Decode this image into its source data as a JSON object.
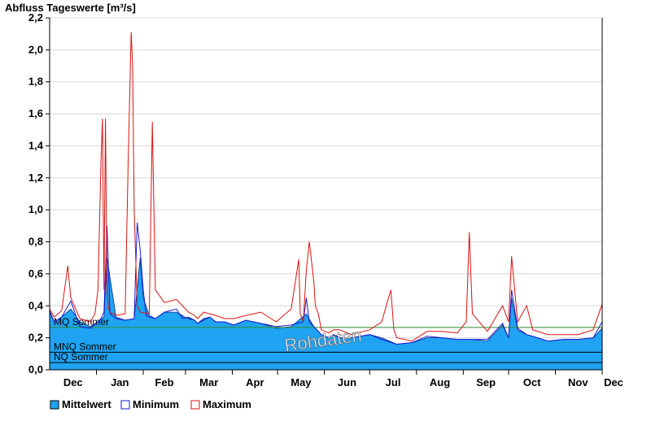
{
  "chart_data": {
    "type": "area",
    "title": "Abfluss Tageswerte [m³/s]",
    "ylim": [
      0,
      2.2
    ],
    "y_ticks": [
      "0,0",
      "0,2",
      "0,4",
      "0,6",
      "0,8",
      "1,0",
      "1,2",
      "1,4",
      "1,6",
      "1,8",
      "2,0",
      "2,2"
    ],
    "x_ticks": [
      "Dec",
      "Jan",
      "Feb",
      "Mar",
      "Apr",
      "May",
      "Jun",
      "Jul",
      "Aug",
      "Sep",
      "Oct",
      "Nov",
      "Dec"
    ],
    "grid": true,
    "watermark": "Rohdaten",
    "reference_lines": [
      {
        "label": "MQ Sommer",
        "value": 0.265,
        "color": "#2e8b2e"
      },
      {
        "label": "MNQ Sommer",
        "value": 0.11,
        "color": "#000000"
      },
      {
        "label": "NQ Sommer",
        "value": 0.045,
        "color": "#000000"
      }
    ],
    "series": [
      {
        "name": "Mittelwert",
        "style": "area",
        "color": "#1fa3f2",
        "x": [
          0,
          3,
          8,
          14,
          20,
          27,
          32,
          36,
          38,
          44,
          50,
          56,
          60,
          62,
          66,
          70,
          76,
          84,
          88,
          90,
          92,
          96,
          98,
          102,
          106,
          110,
          116,
          122,
          130,
          140,
          150,
          160,
          170,
          175,
          180,
          185,
          188,
          192,
          200,
          212,
          220,
          230,
          240,
          250,
          260,
          270,
          280,
          290,
          300,
          304,
          306,
          310,
          316,
          320,
          330,
          340,
          350,
          360,
          366
        ],
        "values": [
          0.36,
          0.3,
          0.33,
          0.38,
          0.3,
          0.27,
          0.3,
          0.33,
          0.7,
          0.33,
          0.31,
          0.32,
          0.7,
          0.45,
          0.34,
          0.32,
          0.36,
          0.36,
          0.34,
          0.32,
          0.33,
          0.31,
          0.29,
          0.32,
          0.33,
          0.3,
          0.3,
          0.28,
          0.31,
          0.29,
          0.26,
          0.27,
          0.35,
          0.27,
          0.22,
          0.2,
          0.22,
          0.2,
          0.2,
          0.22,
          0.2,
          0.16,
          0.17,
          0.2,
          0.2,
          0.19,
          0.19,
          0.18,
          0.28,
          0.2,
          0.45,
          0.25,
          0.22,
          0.21,
          0.18,
          0.19,
          0.19,
          0.2,
          0.26
        ]
      },
      {
        "name": "Minimum",
        "style": "line",
        "color": "#1a1ad0",
        "x": [
          0,
          3,
          8,
          14,
          20,
          27,
          32,
          34,
          36,
          38,
          40,
          44,
          50,
          56,
          58,
          60,
          62,
          64,
          66,
          70,
          76,
          84,
          88,
          90,
          92,
          96,
          98,
          102,
          106,
          110,
          116,
          122,
          130,
          140,
          150,
          160,
          168,
          170,
          172,
          175,
          180,
          185,
          188,
          192,
          200,
          212,
          220,
          230,
          240,
          250,
          260,
          270,
          280,
          290,
          300,
          304,
          306,
          310,
          316,
          320,
          330,
          340,
          350,
          360,
          366
        ],
        "values": [
          0.37,
          0.3,
          0.33,
          0.43,
          0.27,
          0.26,
          0.3,
          0.32,
          0.36,
          0.9,
          0.35,
          0.32,
          0.31,
          0.32,
          0.92,
          0.75,
          0.5,
          0.34,
          0.33,
          0.32,
          0.36,
          0.38,
          0.32,
          0.33,
          0.32,
          0.31,
          0.29,
          0.31,
          0.33,
          0.3,
          0.3,
          0.28,
          0.31,
          0.29,
          0.27,
          0.28,
          0.3,
          0.45,
          0.3,
          0.27,
          0.22,
          0.2,
          0.22,
          0.2,
          0.2,
          0.22,
          0.19,
          0.16,
          0.17,
          0.21,
          0.2,
          0.19,
          0.19,
          0.19,
          0.29,
          0.2,
          0.5,
          0.26,
          0.22,
          0.21,
          0.18,
          0.19,
          0.19,
          0.2,
          0.3
        ]
      },
      {
        "name": "Maximum",
        "style": "line",
        "color": "#dd1111",
        "x": [
          0,
          3,
          8,
          12,
          14,
          20,
          27,
          30,
          32,
          34,
          35,
          36,
          37,
          38,
          39,
          40,
          44,
          50,
          52,
          54,
          55,
          56,
          58,
          60,
          66,
          68,
          70,
          76,
          84,
          88,
          90,
          92,
          96,
          98,
          102,
          106,
          110,
          116,
          122,
          130,
          140,
          150,
          160,
          165,
          166,
          168,
          170,
          172,
          175,
          176,
          178,
          180,
          185,
          188,
          192,
          200,
          212,
          220,
          226,
          228,
          230,
          240,
          250,
          260,
          270,
          276,
          278,
          280,
          290,
          300,
          304,
          306,
          310,
          316,
          320,
          330,
          340,
          350,
          360,
          366
        ],
        "values": [
          0.38,
          0.33,
          0.37,
          0.65,
          0.45,
          0.32,
          0.3,
          0.35,
          0.5,
          1.3,
          1.57,
          0.5,
          1.57,
          0.5,
          0.38,
          0.36,
          0.34,
          0.35,
          1.3,
          2.11,
          1.9,
          1.0,
          0.4,
          0.36,
          0.35,
          1.55,
          0.5,
          0.42,
          0.44,
          0.4,
          0.38,
          0.36,
          0.34,
          0.32,
          0.36,
          0.35,
          0.34,
          0.32,
          0.32,
          0.34,
          0.36,
          0.3,
          0.38,
          0.69,
          0.35,
          0.3,
          0.62,
          0.8,
          0.55,
          0.4,
          0.35,
          0.25,
          0.23,
          0.25,
          0.25,
          0.22,
          0.25,
          0.3,
          0.5,
          0.25,
          0.2,
          0.18,
          0.24,
          0.24,
          0.23,
          0.3,
          0.86,
          0.35,
          0.24,
          0.4,
          0.3,
          0.71,
          0.3,
          0.4,
          0.25,
          0.22,
          0.22,
          0.22,
          0.25,
          0.41
        ]
      }
    ]
  },
  "legend": [
    {
      "label": "Mittelwert",
      "fill": "#1fa3f2",
      "stroke": "#000000"
    },
    {
      "label": "Minimum",
      "fill": "#ffffff",
      "stroke": "#1a1ad0"
    },
    {
      "label": "Maximum",
      "fill": "#ffffff",
      "stroke": "#dd1111"
    }
  ]
}
